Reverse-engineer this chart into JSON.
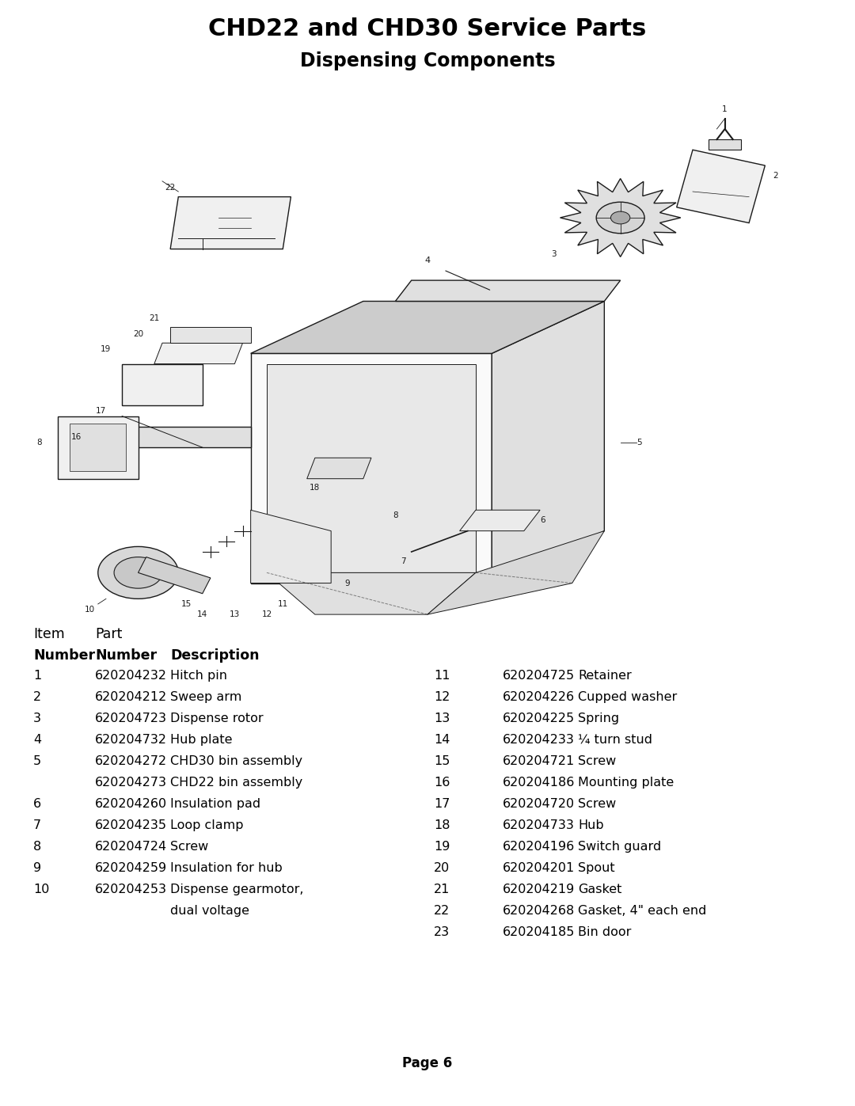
{
  "title": "CHD22 and CHD30 Service Parts",
  "subtitle": "Dispensing Components",
  "page": "Page 6",
  "left_table": [
    [
      "1",
      "620204232",
      "Hitch pin"
    ],
    [
      "2",
      "620204212",
      "Sweep arm"
    ],
    [
      "3",
      "620204723",
      "Dispense rotor"
    ],
    [
      "4",
      "620204732",
      "Hub plate"
    ],
    [
      "5",
      "620204272",
      "CHD30 bin assembly"
    ],
    [
      "",
      "620204273",
      "CHD22 bin assembly"
    ],
    [
      "6",
      "620204260",
      "Insulation pad"
    ],
    [
      "7",
      "620204235",
      "Loop clamp"
    ],
    [
      "8",
      "620204724",
      "Screw"
    ],
    [
      "9",
      "620204259",
      "Insulation for hub"
    ],
    [
      "10",
      "620204253",
      "Dispense gearmotor,"
    ],
    [
      "",
      "",
      "dual voltage"
    ]
  ],
  "right_table": [
    [
      "11",
      "620204725",
      "Retainer"
    ],
    [
      "12",
      "620204226",
      "Cupped washer"
    ],
    [
      "13",
      "620204225",
      "Spring"
    ],
    [
      "14",
      "620204233",
      "¼ turn stud"
    ],
    [
      "15",
      "620204721",
      "Screw"
    ],
    [
      "16",
      "620204186",
      "Mounting plate"
    ],
    [
      "17",
      "620204720",
      "Screw"
    ],
    [
      "18",
      "620204733",
      "Hub"
    ],
    [
      "19",
      "620204196",
      "Switch guard"
    ],
    [
      "20",
      "620204201",
      "Spout"
    ],
    [
      "21",
      "620204219",
      "Gasket"
    ],
    [
      "22",
      "620204268",
      "Gasket, 4\" each end"
    ],
    [
      "23",
      "620204185",
      "Bin door"
    ]
  ],
  "background_color": "#ffffff",
  "text_color": "#000000",
  "title_fontsize": 22,
  "subtitle_fontsize": 17,
  "table_fontsize": 11.5,
  "header_fontsize": 12.5
}
